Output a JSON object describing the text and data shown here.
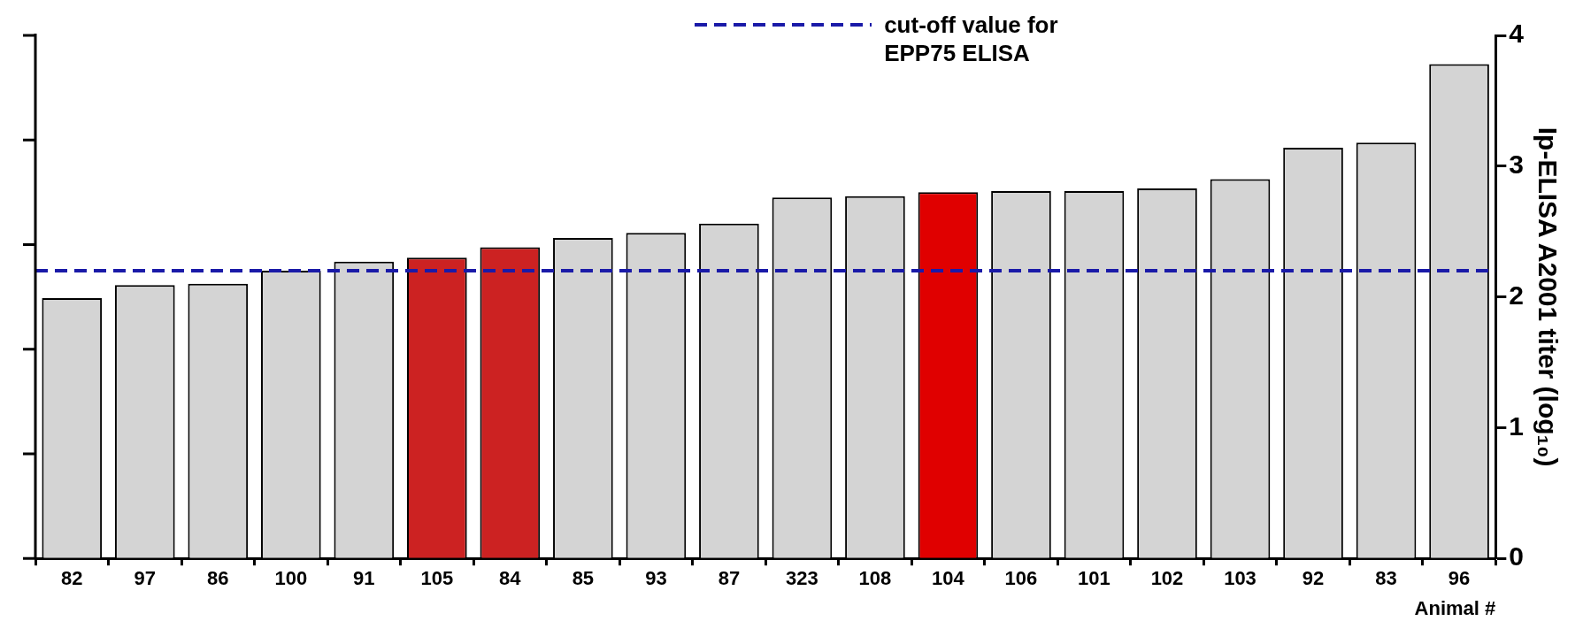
{
  "chart_data": {
    "type": "bar",
    "xlabel": "Animal #",
    "y2label": "Ip-ELISA A2001 titer (log₁₀)",
    "categories": [
      "82",
      "97",
      "86",
      "100",
      "91",
      "105",
      "84",
      "85",
      "93",
      "87",
      "323",
      "108",
      "104",
      "106",
      "101",
      "102",
      "103",
      "92",
      "83",
      "96"
    ],
    "series": [
      {
        "axis": "y2",
        "values": [
          1.99,
          2.09,
          2.1,
          2.2,
          2.27,
          2.3,
          2.38,
          2.45,
          2.49,
          2.56,
          2.76,
          2.77,
          2.8,
          2.81,
          2.81,
          2.83,
          2.9,
          3.14,
          3.18,
          3.78
        ],
        "colors": [
          "#d4d4d4",
          "#d4d4d4",
          "#d4d4d4",
          "#d4d4d4",
          "#d4d4d4",
          "#cc2222",
          "#cc2222",
          "#d4d4d4",
          "#d4d4d4",
          "#d4d4d4",
          "#d4d4d4",
          "#d4d4d4",
          "#e00000",
          "#d4d4d4",
          "#d4d4d4",
          "#d4d4d4",
          "#d4d4d4",
          "#d4d4d4",
          "#d4d4d4",
          "#d4d4d4"
        ]
      }
    ],
    "y2lim": [
      0,
      4
    ],
    "y2ticks": [
      0,
      1,
      2,
      3,
      4
    ],
    "ref_lines": [
      {
        "axis": "y2",
        "value": 2.2,
        "label": "cut-off value for EPP75 ELISA",
        "color": "#1a1aa8",
        "line_style": "dashed"
      }
    ],
    "legend": "top",
    "grid": false
  }
}
